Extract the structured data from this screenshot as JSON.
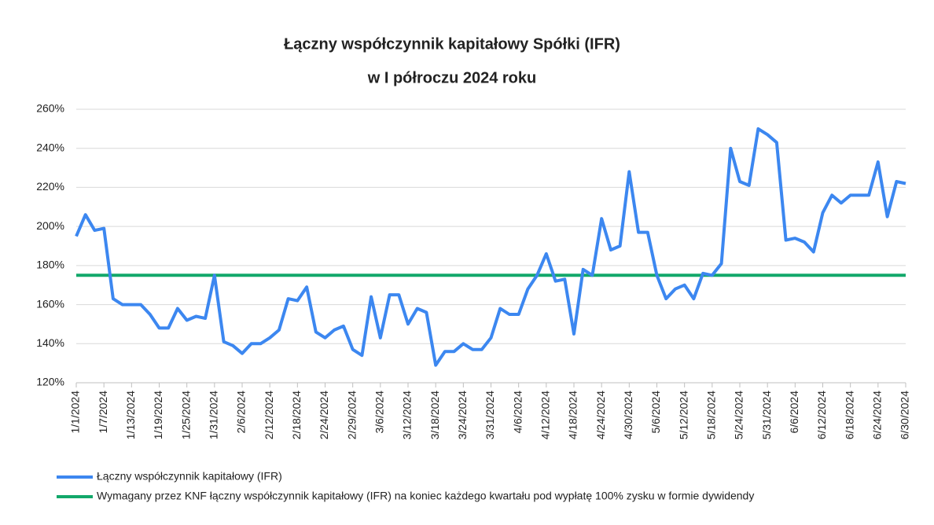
{
  "chart_data": {
    "type": "line",
    "title": [
      "Łączny współczynnik kapitałowy Spółki (IFR)",
      "w I półroczu 2024 roku"
    ],
    "categories": [
      "1/1/2024",
      null,
      null,
      "1/7/2024",
      null,
      null,
      "1/13/2024",
      null,
      null,
      "1/19/2024",
      null,
      null,
      "1/25/2024",
      null,
      null,
      "1/31/2024",
      null,
      null,
      "2/6/2024",
      null,
      null,
      "2/12/2024",
      null,
      null,
      "2/18/2024",
      null,
      null,
      "2/24/2024",
      null,
      null,
      "2/29/2024",
      null,
      null,
      "3/6/2024",
      null,
      null,
      "3/12/2024",
      null,
      null,
      "3/18/2024",
      null,
      null,
      "3/24/2024",
      null,
      null,
      "3/31/2024",
      null,
      null,
      "4/6/2024",
      null,
      null,
      "4/12/2024",
      null,
      null,
      "4/18/2024",
      null,
      null,
      "4/24/2024",
      null,
      null,
      "4/30/2024",
      null,
      null,
      "5/6/2024",
      null,
      null,
      "5/12/2024",
      null,
      null,
      "5/18/2024",
      null,
      null,
      "5/24/2024",
      null,
      null,
      "5/31/2024",
      null,
      null,
      "6/6/2024",
      null,
      null,
      "6/12/2024",
      null,
      null,
      "6/18/2024",
      null,
      null,
      "6/24/2024",
      null,
      null,
      "6/30/2024"
    ],
    "series": [
      {
        "name": "Łączny współczynnik kapitałowy (IFR)",
        "color": "#3c87f0",
        "values": [
          195,
          206,
          198,
          199,
          163,
          160,
          160,
          160,
          155,
          148,
          148,
          158,
          152,
          154,
          153,
          175,
          141,
          139,
          135,
          140,
          140,
          143,
          147,
          163,
          162,
          169,
          146,
          143,
          147,
          149,
          137,
          134,
          164,
          143,
          165,
          165,
          150,
          158,
          156,
          129,
          136,
          136,
          140,
          137,
          137,
          143,
          158,
          155,
          155,
          168,
          175,
          186,
          172,
          173,
          145,
          178,
          175,
          204,
          188,
          190,
          228,
          197,
          197,
          175,
          163,
          168,
          170,
          163,
          176,
          175,
          181,
          240,
          223,
          221,
          250,
          247,
          243,
          193,
          194,
          192,
          187,
          207,
          216,
          212,
          216,
          216,
          216,
          233,
          205,
          223,
          222
        ]
      },
      {
        "name": "Wymagany przez KNF łączny współczynnik kapitałowy (IFR) na koniec każdego kwartału pod wypłatę 100% zysku w formie dywidendy",
        "color": "#12a86a",
        "values": [
          175,
          175,
          175,
          175,
          175,
          175,
          175,
          175,
          175,
          175,
          175,
          175,
          175,
          175,
          175,
          175,
          175,
          175,
          175,
          175,
          175,
          175,
          175,
          175,
          175,
          175,
          175,
          175,
          175,
          175,
          175,
          175,
          175,
          175,
          175,
          175,
          175,
          175,
          175,
          175,
          175,
          175,
          175,
          175,
          175,
          175,
          175,
          175,
          175,
          175,
          175,
          175,
          175,
          175,
          175,
          175,
          175,
          175,
          175,
          175,
          175,
          175,
          175,
          175,
          175,
          175,
          175,
          175,
          175,
          175,
          175,
          175,
          175,
          175,
          175,
          175,
          175,
          175,
          175,
          175,
          175,
          175,
          175,
          175,
          175,
          175,
          175,
          175,
          175,
          175,
          175
        ]
      }
    ],
    "ylim": [
      120,
      260
    ],
    "yticks": [
      {
        "value": 120,
        "label": "120%"
      },
      {
        "value": 140,
        "label": "140%"
      },
      {
        "value": 160,
        "label": "160%"
      },
      {
        "value": 180,
        "label": "180%"
      },
      {
        "value": 200,
        "label": "200%"
      },
      {
        "value": 220,
        "label": "220%"
      },
      {
        "value": 240,
        "label": "240%"
      },
      {
        "value": 260,
        "label": "260%"
      }
    ],
    "grid": true,
    "legend": "bottom"
  }
}
